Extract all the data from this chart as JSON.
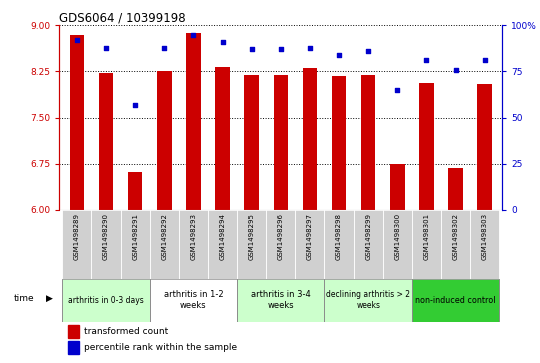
{
  "title": "GDS6064 / 10399198",
  "samples": [
    "GSM1498289",
    "GSM1498290",
    "GSM1498291",
    "GSM1498292",
    "GSM1498293",
    "GSM1498294",
    "GSM1498295",
    "GSM1498296",
    "GSM1498297",
    "GSM1498298",
    "GSM1498299",
    "GSM1498300",
    "GSM1498301",
    "GSM1498302",
    "GSM1498303"
  ],
  "bar_values": [
    8.85,
    8.22,
    6.62,
    8.25,
    8.88,
    8.32,
    8.2,
    8.2,
    8.3,
    8.17,
    8.2,
    6.75,
    8.07,
    6.68,
    8.05
  ],
  "dot_values": [
    92,
    88,
    57,
    88,
    95,
    91,
    87,
    87,
    88,
    84,
    86,
    65,
    81,
    76,
    81
  ],
  "ylim_left": [
    6,
    9
  ],
  "ylim_right": [
    0,
    100
  ],
  "yticks_left": [
    6,
    6.75,
    7.5,
    8.25,
    9
  ],
  "yticks_right": [
    0,
    25,
    50,
    75,
    100
  ],
  "bar_color": "#CC0000",
  "dot_color": "#0000CC",
  "bg_color": "#ffffff",
  "groups": [
    {
      "label": "arthritis in 0-3 days",
      "start": 0,
      "end": 3,
      "color": "#ccffcc",
      "fontsize": 5.5
    },
    {
      "label": "arthritis in 1-2\nweeks",
      "start": 3,
      "end": 6,
      "color": "#ffffff",
      "fontsize": 6.0
    },
    {
      "label": "arthritis in 3-4\nweeks",
      "start": 6,
      "end": 9,
      "color": "#ccffcc",
      "fontsize": 6.0
    },
    {
      "label": "declining arthritis > 2\nweeks",
      "start": 9,
      "end": 12,
      "color": "#ccffcc",
      "fontsize": 5.5
    },
    {
      "label": "non-induced control",
      "start": 12,
      "end": 15,
      "color": "#33cc33",
      "fontsize": 5.8
    }
  ],
  "legend_bar": "transformed count",
  "legend_dot": "percentile rank within the sample",
  "time_label": "time"
}
